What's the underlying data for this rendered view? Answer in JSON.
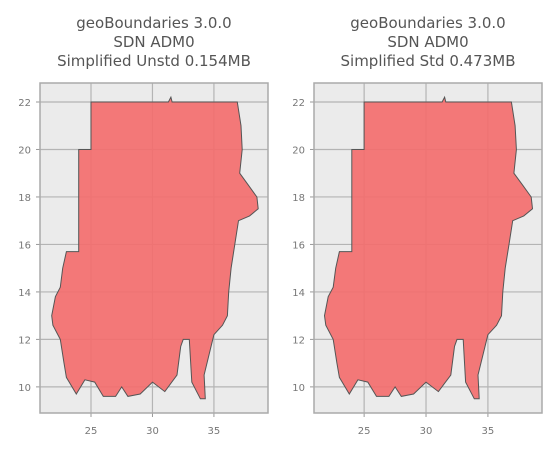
{
  "chart_data": [
    {
      "type": "map",
      "title": [
        "geoBoundaries 3.0.0",
        "SDN ADM0",
        "Simplified Unstd 0.154MB"
      ],
      "xlim": [
        20.85,
        39.4
      ],
      "ylim": [
        8.9,
        22.8
      ],
      "xticks": [
        25,
        30,
        35
      ],
      "yticks": [
        10,
        12,
        14,
        16,
        18,
        20,
        22
      ],
      "grid": true,
      "color": "#f46b6b",
      "x": [
        24.0,
        25.0,
        25.0,
        31.3,
        31.5,
        31.6,
        36.9,
        37.2,
        37.3,
        37.1,
        37.8,
        38.5,
        38.6,
        37.9,
        37.0,
        36.7,
        36.4,
        36.2,
        36.1,
        35.7,
        35.0,
        34.2,
        34.3,
        33.9,
        33.2,
        33.0,
        32.5,
        32.3,
        32.0,
        31.0,
        30.0,
        29.0,
        28.0,
        27.5,
        27.0,
        26.0,
        25.3,
        24.5,
        23.8,
        23.0,
        22.8,
        22.5,
        21.9,
        21.8,
        22.1,
        22.5,
        22.7,
        23.0,
        24.0
      ],
      "y": [
        20.0,
        20.0,
        22.0,
        22.0,
        22.2,
        22.0,
        22.0,
        21.0,
        20.0,
        19.0,
        18.5,
        18.0,
        17.5,
        17.2,
        17.0,
        16.0,
        15.0,
        14.0,
        13.0,
        12.6,
        12.2,
        10.5,
        9.5,
        9.5,
        10.2,
        12.0,
        12.0,
        11.7,
        10.5,
        9.8,
        10.2,
        9.7,
        9.6,
        10.0,
        9.6,
        9.6,
        10.2,
        10.3,
        9.7,
        10.4,
        11.0,
        12.0,
        12.6,
        13.0,
        13.8,
        14.2,
        15.0,
        15.7,
        15.7
      ]
    },
    {
      "type": "map",
      "title": [
        "geoBoundaries 3.0.0",
        "SDN ADM0",
        "Simplified Std 0.473MB"
      ],
      "xlim": [
        20.95,
        39.37
      ],
      "ylim": [
        8.9,
        22.8
      ],
      "xticks": [
        25,
        30,
        35
      ],
      "yticks": [
        10,
        12,
        14,
        16,
        18,
        20,
        22
      ],
      "grid": true,
      "color": "#f46b6b",
      "x": [
        24.0,
        25.0,
        25.0,
        31.3,
        31.5,
        31.6,
        36.9,
        37.2,
        37.3,
        37.1,
        37.8,
        38.5,
        38.6,
        37.9,
        37.0,
        36.7,
        36.4,
        36.2,
        36.1,
        35.7,
        35.0,
        34.2,
        34.3,
        33.9,
        33.2,
        33.0,
        32.5,
        32.3,
        32.0,
        31.0,
        30.0,
        29.0,
        28.0,
        27.5,
        27.0,
        26.0,
        25.3,
        24.5,
        23.8,
        23.0,
        22.8,
        22.5,
        21.9,
        21.8,
        22.1,
        22.5,
        22.7,
        23.0,
        24.0
      ],
      "y": [
        20.0,
        20.0,
        22.0,
        22.0,
        22.2,
        22.0,
        22.0,
        21.0,
        20.0,
        19.0,
        18.5,
        18.0,
        17.5,
        17.2,
        17.0,
        16.0,
        15.0,
        14.0,
        13.0,
        12.6,
        12.2,
        10.5,
        9.5,
        9.5,
        10.2,
        12.0,
        12.0,
        11.7,
        10.5,
        9.8,
        10.2,
        9.7,
        9.6,
        10.0,
        9.6,
        9.6,
        10.2,
        10.3,
        9.7,
        10.4,
        11.0,
        12.0,
        12.6,
        13.0,
        13.8,
        14.2,
        15.0,
        15.7,
        15.7
      ]
    }
  ]
}
